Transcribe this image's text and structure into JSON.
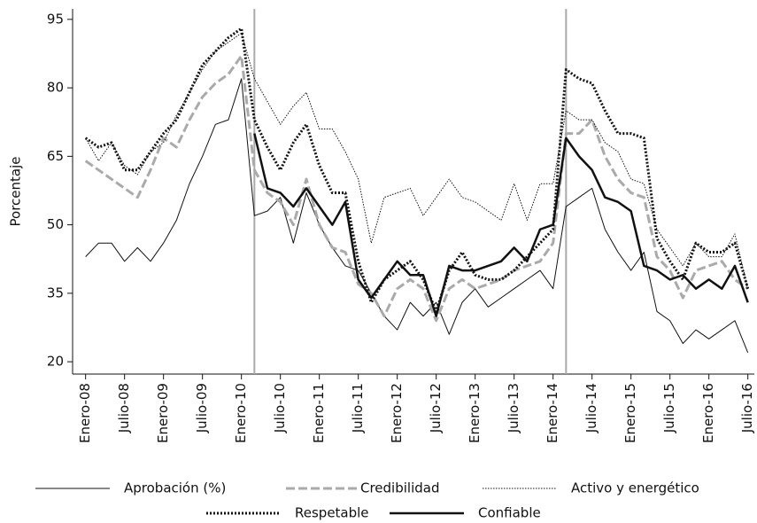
{
  "chart_data": {
    "type": "line",
    "ylabel": "Porcentaje",
    "x": [
      0,
      2,
      4,
      6,
      8,
      10,
      12,
      14,
      16,
      18,
      20,
      22,
      24,
      26,
      28,
      30,
      32,
      34,
      36,
      38,
      40,
      42,
      44,
      46,
      48,
      50,
      52,
      54,
      56,
      58,
      60,
      62,
      64,
      66,
      68,
      70,
      72,
      74,
      76,
      78,
      80,
      82,
      84,
      86,
      88,
      90,
      92,
      94,
      96,
      98,
      100,
      102
    ],
    "xlim": [
      -2,
      103
    ],
    "xticks": [
      {
        "value": 0,
        "label": "Enero-08"
      },
      {
        "value": 6,
        "label": "Julio-08"
      },
      {
        "value": 12,
        "label": "Enero-09"
      },
      {
        "value": 18,
        "label": "Julio-09"
      },
      {
        "value": 24,
        "label": "Enero-10"
      },
      {
        "value": 30,
        "label": "Julio-10"
      },
      {
        "value": 36,
        "label": "Enero-11"
      },
      {
        "value": 42,
        "label": "Julio-11"
      },
      {
        "value": 48,
        "label": "Enero-12"
      },
      {
        "value": 54,
        "label": "Julio-12"
      },
      {
        "value": 60,
        "label": "Enero-13"
      },
      {
        "value": 66,
        "label": "Julio-13"
      },
      {
        "value": 72,
        "label": "Enero-14"
      },
      {
        "value": 78,
        "label": "Julio-14"
      },
      {
        "value": 84,
        "label": "Enero-15"
      },
      {
        "value": 90,
        "label": "Julio-15"
      },
      {
        "value": 96,
        "label": "Enero-16"
      },
      {
        "value": 102,
        "label": "Julio-16"
      }
    ],
    "ylim": [
      17.3,
      97.3
    ],
    "yticks": [
      20,
      35,
      50,
      65,
      80,
      95
    ],
    "vlines": [
      26,
      74
    ],
    "vline_color": "#aaaaaa",
    "series": [
      {
        "name": "Aprobación (%)",
        "color": "#111111",
        "width": 1,
        "style": "solid",
        "values": [
          43,
          46,
          46,
          42,
          45,
          42,
          46,
          51,
          59,
          65,
          72,
          73,
          82,
          52,
          53,
          56,
          46,
          57,
          50,
          45,
          41,
          40,
          35,
          30,
          27,
          33,
          30,
          33,
          26,
          33,
          36,
          32,
          34,
          36,
          38,
          40,
          36,
          54,
          56,
          58,
          49,
          44,
          40,
          44,
          31,
          29,
          24,
          27,
          25,
          27,
          29,
          22
        ]
      },
      {
        "name": "Credibilidad",
        "color": "#aaaaaa",
        "width": 3,
        "style": "dashed",
        "values": [
          64,
          62,
          60,
          58,
          56,
          62,
          69,
          67,
          73,
          78,
          81,
          83,
          87,
          62,
          57,
          55,
          50,
          60,
          50,
          45,
          44,
          37,
          35,
          30,
          36,
          38,
          36,
          29,
          36,
          38,
          36,
          37,
          38,
          40,
          41,
          42,
          46,
          70,
          70,
          73,
          65,
          60,
          57,
          56,
          43,
          40,
          34,
          40,
          41,
          42,
          38,
          36
        ]
      },
      {
        "name": "Activo y energético",
        "color": "#111111",
        "width": 1,
        "style": "dotted",
        "values": [
          69,
          64,
          68,
          63,
          61,
          66,
          68,
          74,
          79,
          84,
          88,
          90,
          92,
          82,
          77,
          72,
          76,
          79,
          71,
          71,
          66,
          60,
          46,
          56,
          57,
          58,
          52,
          56,
          60,
          56,
          55,
          53,
          51,
          59,
          51,
          59,
          59,
          75,
          73,
          73,
          68,
          66,
          60,
          59,
          49,
          45,
          41,
          46,
          43,
          43,
          48,
          36
        ]
      },
      {
        "name": "Respetable",
        "color": "#111111",
        "width": 3,
        "style": "dotted",
        "values": [
          69,
          67,
          68,
          62,
          62,
          66,
          70,
          73,
          79,
          85,
          88,
          91,
          93,
          73,
          67,
          62,
          68,
          72,
          63,
          57,
          57,
          42,
          33,
          38,
          40,
          42,
          38,
          31,
          40,
          44,
          39,
          38,
          38,
          40,
          43,
          46,
          49,
          84,
          82,
          81,
          75,
          70,
          70,
          69,
          47,
          42,
          38,
          46,
          44,
          44,
          46,
          36
        ]
      },
      {
        "name": "Confiable",
        "color": "#111111",
        "width": 2.5,
        "style": "solid",
        "values": [
          null,
          null,
          null,
          null,
          null,
          null,
          null,
          null,
          null,
          null,
          null,
          null,
          null,
          70,
          58,
          57,
          54,
          58,
          54,
          50,
          55,
          38,
          34,
          38,
          42,
          39,
          39,
          30,
          41,
          40,
          40,
          41,
          42,
          45,
          42,
          49,
          50,
          69,
          65,
          62,
          56,
          55,
          53,
          41,
          40,
          38,
          39,
          36,
          38,
          36,
          41,
          33
        ]
      }
    ]
  }
}
